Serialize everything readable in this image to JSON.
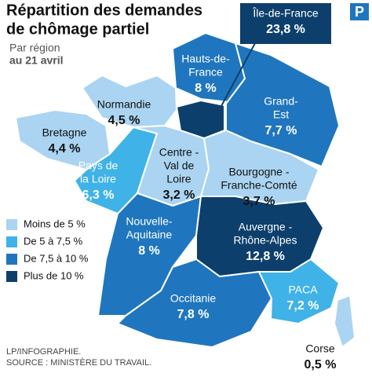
{
  "header": {
    "title": [
      "Répartition des demandes",
      "de chômage partiel"
    ],
    "subtitle": "Par région",
    "date": "au 21 avril"
  },
  "logo": "P",
  "regions": [
    {
      "name": [
        "Île-de-France"
      ],
      "value": "23,8 %"
    },
    {
      "name": [
        "Hauts-de-",
        "France"
      ],
      "value": "8 %"
    },
    {
      "name": [
        "Grand-",
        "Est"
      ],
      "value": "7,7 %"
    },
    {
      "name": [
        "Normandie"
      ],
      "value": "4,5 %"
    },
    {
      "name": [
        "Bretagne"
      ],
      "value": "4,4 %"
    },
    {
      "name": [
        "Pays de",
        "la Loire"
      ],
      "value": "6,3 %"
    },
    {
      "name": [
        "Centre -",
        "Val de",
        "Loire"
      ],
      "value": "3,2 %"
    },
    {
      "name": [
        "Bourgogne -",
        "Franche-Comté"
      ],
      "value": "3,7 %"
    },
    {
      "name": [
        "Nouvelle-",
        "Aquitaine"
      ],
      "value": "8 %"
    },
    {
      "name": [
        "Auvergne -",
        "Rhône-Alpes"
      ],
      "value": "12,8 %"
    },
    {
      "name": [
        "Occitanie"
      ],
      "value": "7,8 %"
    },
    {
      "name": [
        "PACA"
      ],
      "value": "7,2 %"
    },
    {
      "name": [
        "Corse"
      ],
      "value": "0,5 %"
    }
  ],
  "legend": [
    "Moins de 5 %",
    "De 5 à 7,5 %",
    "De 7,5 à 10 %",
    "Plus de 10 %"
  ],
  "footer": [
    "LP/INFOGRAPHIE.",
    "SOURCE : MINISTÈRE DU TRAVAIL."
  ]
}
